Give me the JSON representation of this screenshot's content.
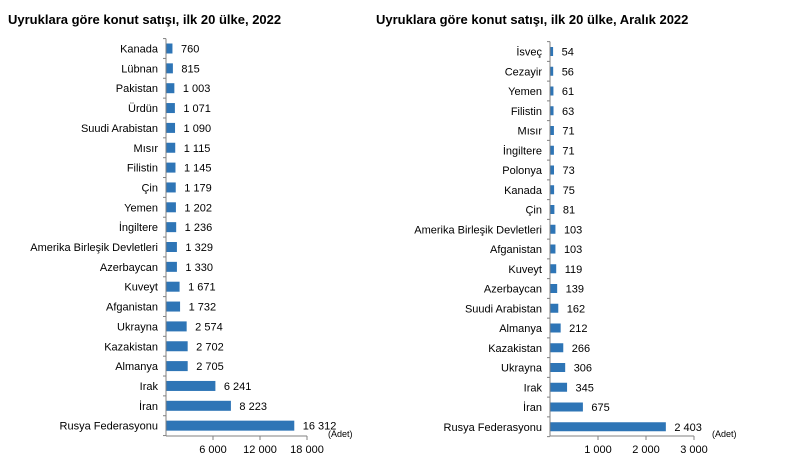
{
  "charts": [
    {
      "title": "Uyruklara göre konut satışı, ilk 20 ülke, 2022"
    },
    {
      "title": "Uyruklara göre konut satışı, ilk 20 ülke, Aralık 2022"
    }
  ],
  "chart_data": [
    {
      "type": "bar",
      "orientation": "horizontal",
      "title": "Uyruklara göre konut satışı, ilk 20 ülke, 2022",
      "unit_label": "(Adet)",
      "categories": [
        "Kanada",
        "Lübnan",
        "Pakistan",
        "Ürdün",
        "Suudi Arabistan",
        "Mısır",
        "Filistin",
        "Çin",
        "Yemen",
        "İngiltere",
        "Amerika Birleşik Devletleri",
        "Azerbaycan",
        "Kuveyt",
        "Afganistan",
        "Ukrayna",
        "Kazakistan",
        "Almanya",
        "Irak",
        "İran",
        "Rusya Federasyonu"
      ],
      "values": [
        760,
        815,
        1003,
        1071,
        1090,
        1115,
        1145,
        1179,
        1202,
        1236,
        1329,
        1330,
        1671,
        1732,
        2574,
        2702,
        2705,
        6241,
        8223,
        16312
      ],
      "value_labels": [
        "760",
        "815",
        "1 003",
        "1 071",
        "1 090",
        "1 115",
        "1 145",
        "1 179",
        "1 202",
        "1 236",
        "1 329",
        "1 330",
        "1 671",
        "1 732",
        "2 574",
        "2 702",
        "2 705",
        "6 241",
        "8 223",
        "16 312"
      ],
      "xlim": [
        0,
        18000
      ],
      "xticks": [
        6000,
        12000,
        18000
      ],
      "xtick_labels": [
        "6 000",
        "12 000",
        "18 000"
      ],
      "bar_color": "#2e75b6",
      "grid": false
    },
    {
      "type": "bar",
      "orientation": "horizontal",
      "title": "Uyruklara göre konut satışı, ilk 20 ülke, Aralık 2022",
      "unit_label": "(Adet)",
      "categories": [
        "İsveç",
        "Cezayir",
        "Yemen",
        "Filistin",
        "Mısır",
        "İngiltere",
        "Polonya",
        "Kanada",
        "Çin",
        "Amerika Birleşik Devletleri",
        "Afganistan",
        "Kuveyt",
        "Azerbaycan",
        "Suudi Arabistan",
        "Almanya",
        "Kazakistan",
        "Ukrayna",
        "Irak",
        "İran",
        "Rusya Federasyonu"
      ],
      "values": [
        54,
        56,
        61,
        63,
        71,
        71,
        73,
        75,
        81,
        103,
        103,
        119,
        139,
        162,
        212,
        266,
        306,
        345,
        675,
        2403
      ],
      "value_labels": [
        "54",
        "56",
        "61",
        "63",
        "71",
        "71",
        "73",
        "75",
        "81",
        "103",
        "103",
        "119",
        "139",
        "162",
        "212",
        "266",
        "306",
        "345",
        "675",
        "2 403"
      ],
      "xlim": [
        0,
        3000
      ],
      "xticks": [
        1000,
        2000,
        3000
      ],
      "xtick_labels": [
        "1 000",
        "2 000",
        "3 000"
      ],
      "bar_color": "#2e75b6",
      "grid": false
    }
  ]
}
